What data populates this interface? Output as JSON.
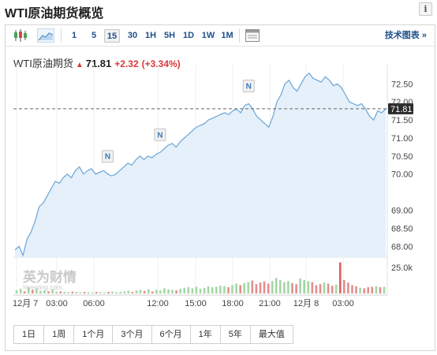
{
  "page": {
    "title": "WTI原油期货概览",
    "info_label": "i"
  },
  "toolbar": {
    "icons": [
      "candlestick-icon",
      "area-chart-icon",
      "settings-panel-icon"
    ],
    "intervals": [
      "1",
      "5",
      "15",
      "30",
      "1H",
      "5H",
      "1D",
      "1W",
      "1M"
    ],
    "active_interval": "15",
    "tech_link": "技术图表 »"
  },
  "quote": {
    "name": "WTI原油期货",
    "price": "71.81",
    "change": "+2.32",
    "change_pct": "(+3.34%)",
    "direction": "up"
  },
  "watermark": {
    "cn": "英为财情",
    "en": "Investing.com"
  },
  "periods": [
    "1日",
    "1周",
    "1个月",
    "3个月",
    "6个月",
    "1年",
    "5年",
    "最大值"
  ],
  "colors": {
    "line": "#6aa5d6",
    "area": "#e5f0fa",
    "up_volume": "#a3d6a5",
    "down_volume": "#e38d8d",
    "highlight_volume": "#e05d5d",
    "price_label_bg": "#2b2b2b",
    "link": "#1f4f8b",
    "up_text": "#d93a3a"
  },
  "chart_data": {
    "type": "line",
    "y_axis": {
      "ticks": [
        "72.50",
        "72.00",
        "71.50",
        "71.00",
        "70.50",
        "70.00",
        "69.00",
        "68.50",
        "68.00"
      ],
      "last_price_label": "71.81",
      "range": [
        67.7,
        72.9
      ]
    },
    "x_axis": {
      "ticks": [
        "12月 7",
        "03:00",
        "06:00",
        "12:00",
        "15:00",
        "18:00",
        "21:00",
        "12月 8",
        "03:00"
      ]
    },
    "volume_axis": {
      "ticks": [
        "25.0k"
      ],
      "range": [
        0,
        32000
      ]
    },
    "news_markers": [
      "N",
      "N",
      "N"
    ],
    "series": [
      {
        "values": [
          67.9,
          68.0,
          67.75,
          68.2,
          68.4,
          68.7,
          69.1,
          69.2,
          69.4,
          69.6,
          69.8,
          69.75,
          69.9,
          70.0,
          69.9,
          70.1,
          70.2,
          70.0,
          70.1,
          70.15,
          70.0,
          70.05,
          70.1,
          70.0,
          69.95,
          70.0,
          70.1,
          70.2,
          70.3,
          70.25,
          70.4,
          70.5,
          70.4,
          70.5,
          70.45,
          70.55,
          70.6,
          70.7,
          70.8,
          70.85,
          70.75,
          70.9,
          71.0,
          71.1,
          71.2,
          71.3,
          71.35,
          71.4,
          71.5,
          71.55,
          71.6,
          71.65,
          71.7,
          71.65,
          71.75,
          71.8,
          71.7,
          71.9,
          71.95,
          71.8,
          71.6,
          71.5,
          71.4,
          71.3,
          71.6,
          72.0,
          72.2,
          72.5,
          72.6,
          72.4,
          72.3,
          72.5,
          72.7,
          72.8,
          72.65,
          72.6,
          72.55,
          72.7,
          72.6,
          72.45,
          72.5,
          72.4,
          72.2,
          72.0,
          71.95,
          71.9,
          71.95,
          71.8,
          71.6,
          71.5,
          71.75,
          71.7,
          71.81
        ]
      }
    ],
    "volume": [
      {
        "v": 3000,
        "c": "up"
      },
      {
        "v": 4500,
        "c": "up"
      },
      {
        "v": 2000,
        "c": "down"
      },
      {
        "v": 6000,
        "c": "up"
      },
      {
        "v": 3500,
        "c": "down"
      },
      {
        "v": 5000,
        "c": "up"
      },
      {
        "v": 2500,
        "c": "up"
      },
      {
        "v": 3000,
        "c": "up"
      },
      {
        "v": 2000,
        "c": "down"
      },
      {
        "v": 4000,
        "c": "up"
      },
      {
        "v": 1500,
        "c": "up"
      },
      {
        "v": 2000,
        "c": "down"
      },
      {
        "v": 1500,
        "c": "up"
      },
      {
        "v": 1200,
        "c": "up"
      },
      {
        "v": 1800,
        "c": "down"
      },
      {
        "v": 1500,
        "c": "up"
      },
      {
        "v": 1000,
        "c": "up"
      },
      {
        "v": 1500,
        "c": "down"
      },
      {
        "v": 1200,
        "c": "up"
      },
      {
        "v": 800,
        "c": "up"
      },
      {
        "v": 1500,
        "c": "down"
      },
      {
        "v": 1200,
        "c": "up"
      },
      {
        "v": 1000,
        "c": "up"
      },
      {
        "v": 1500,
        "c": "down"
      },
      {
        "v": 1800,
        "c": "up"
      },
      {
        "v": 1200,
        "c": "up"
      },
      {
        "v": 1500,
        "c": "up"
      },
      {
        "v": 2000,
        "c": "up"
      },
      {
        "v": 2500,
        "c": "up"
      },
      {
        "v": 1500,
        "c": "down"
      },
      {
        "v": 3000,
        "c": "up"
      },
      {
        "v": 3500,
        "c": "up"
      },
      {
        "v": 2500,
        "c": "down"
      },
      {
        "v": 4000,
        "c": "up"
      },
      {
        "v": 2000,
        "c": "down"
      },
      {
        "v": 3500,
        "c": "up"
      },
      {
        "v": 3000,
        "c": "up"
      },
      {
        "v": 5000,
        "c": "up"
      },
      {
        "v": 4000,
        "c": "up"
      },
      {
        "v": 3500,
        "c": "up"
      },
      {
        "v": 3000,
        "c": "down"
      },
      {
        "v": 4500,
        "c": "up"
      },
      {
        "v": 5500,
        "c": "up"
      },
      {
        "v": 6000,
        "c": "up"
      },
      {
        "v": 5000,
        "c": "up"
      },
      {
        "v": 6500,
        "c": "up"
      },
      {
        "v": 4500,
        "c": "up"
      },
      {
        "v": 5500,
        "c": "up"
      },
      {
        "v": 7000,
        "c": "up"
      },
      {
        "v": 6000,
        "c": "up"
      },
      {
        "v": 6500,
        "c": "up"
      },
      {
        "v": 7500,
        "c": "up"
      },
      {
        "v": 7000,
        "c": "up"
      },
      {
        "v": 6000,
        "c": "down"
      },
      {
        "v": 8000,
        "c": "up"
      },
      {
        "v": 9500,
        "c": "up"
      },
      {
        "v": 8000,
        "c": "down"
      },
      {
        "v": 10000,
        "c": "up"
      },
      {
        "v": 11000,
        "c": "up"
      },
      {
        "v": 12500,
        "c": "down"
      },
      {
        "v": 9000,
        "c": "down"
      },
      {
        "v": 10500,
        "c": "down"
      },
      {
        "v": 11500,
        "c": "down"
      },
      {
        "v": 9500,
        "c": "down"
      },
      {
        "v": 12000,
        "c": "up"
      },
      {
        "v": 15000,
        "c": "up"
      },
      {
        "v": 13000,
        "c": "up"
      },
      {
        "v": 11000,
        "c": "up"
      },
      {
        "v": 12000,
        "c": "up"
      },
      {
        "v": 10000,
        "c": "down"
      },
      {
        "v": 9000,
        "c": "down"
      },
      {
        "v": 14500,
        "c": "up"
      },
      {
        "v": 13000,
        "c": "up"
      },
      {
        "v": 12000,
        "c": "up"
      },
      {
        "v": 11000,
        "c": "down"
      },
      {
        "v": 8000,
        "c": "down"
      },
      {
        "v": 9000,
        "c": "down"
      },
      {
        "v": 10500,
        "c": "up"
      },
      {
        "v": 9500,
        "c": "down"
      },
      {
        "v": 7500,
        "c": "down"
      },
      {
        "v": 8500,
        "c": "up"
      },
      {
        "v": 30000,
        "c": "hi"
      },
      {
        "v": 13000,
        "c": "down"
      },
      {
        "v": 10500,
        "c": "down"
      },
      {
        "v": 8000,
        "c": "down"
      },
      {
        "v": 7000,
        "c": "down"
      },
      {
        "v": 5500,
        "c": "up"
      },
      {
        "v": 5000,
        "c": "down"
      },
      {
        "v": 6000,
        "c": "down"
      },
      {
        "v": 6500,
        "c": "down"
      },
      {
        "v": 7000,
        "c": "up"
      },
      {
        "v": 6000,
        "c": "down"
      },
      {
        "v": 6500,
        "c": "up"
      }
    ],
    "grid": "vertical",
    "legend": "none"
  }
}
